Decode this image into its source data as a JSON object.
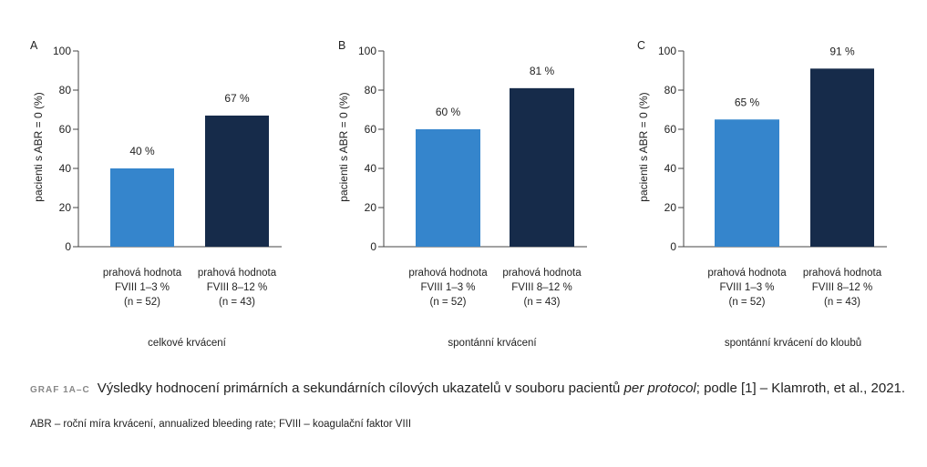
{
  "chart_data": [
    {
      "type": "bar",
      "panel": "A",
      "categories": [
        [
          "prahová hodnota",
          "FVIII 1–3 %",
          "(n = 52)"
        ],
        [
          "prahová hodnota",
          "FVIII 8–12 %",
          "(n = 43)"
        ]
      ],
      "values": [
        40,
        67
      ],
      "data_labels": [
        "40 %",
        "67 %"
      ],
      "colors": [
        "#3585cc",
        "#162b4a"
      ],
      "ylabel": "pacienti s ABR = 0 (%)",
      "ylim": [
        0,
        100
      ],
      "yticks": [
        0,
        20,
        40,
        60,
        80,
        100
      ],
      "subtitle": "celkové krvácení",
      "grid": false
    },
    {
      "type": "bar",
      "panel": "B",
      "categories": [
        [
          "prahová hodnota",
          "FVIII 1–3 %",
          "(n = 52)"
        ],
        [
          "prahová hodnota",
          "FVIII 8–12 %",
          "(n = 43)"
        ]
      ],
      "values": [
        60,
        81
      ],
      "data_labels": [
        "60 %",
        "81 %"
      ],
      "colors": [
        "#3585cc",
        "#162b4a"
      ],
      "ylabel": "pacienti s ABR = 0 (%)",
      "ylim": [
        0,
        100
      ],
      "yticks": [
        0,
        20,
        40,
        60,
        80,
        100
      ],
      "subtitle": "spontánní krvácení",
      "grid": false
    },
    {
      "type": "bar",
      "panel": "C",
      "categories": [
        [
          "prahová hodnota",
          "FVIII 1–3 %",
          "(n = 52)"
        ],
        [
          "prahová hodnota",
          "FVIII 8–12 %",
          "(n = 43)"
        ]
      ],
      "values": [
        65,
        91
      ],
      "data_labels": [
        "65 %",
        "91 %"
      ],
      "colors": [
        "#3585cc",
        "#162b4a"
      ],
      "ylabel": "pacienti s ABR = 0 (%)",
      "ylim": [
        0,
        100
      ],
      "yticks": [
        0,
        20,
        40,
        60,
        80,
        100
      ],
      "subtitle": "spontánní krvácení do kloubů",
      "grid": false
    }
  ],
  "caption": {
    "tag": "GRAF 1A–C",
    "text_before": "Výsledky hodnocení primárních a sekundárních cílových ukazatelů v souboru pacientů ",
    "text_italic": "per protocol",
    "text_after": "; podle [1] – Klamroth, et al., 2021."
  },
  "footnote": "ABR – roční míra krvácení, annualized bleeding rate; FVIII – koagulační faktor VIII"
}
